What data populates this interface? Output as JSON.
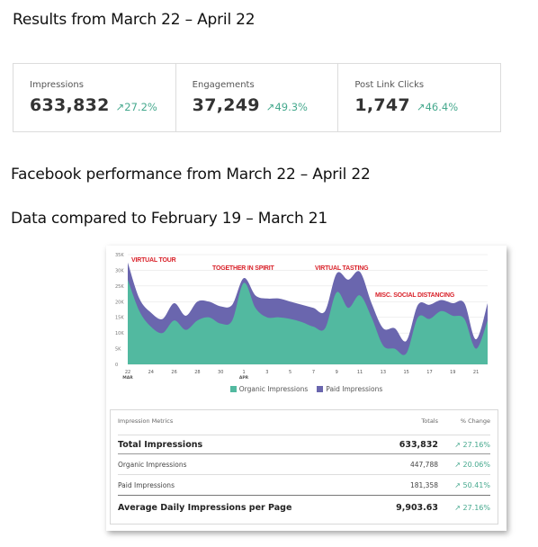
{
  "results_heading": "Results from March 22 – April 22",
  "metrics": [
    {
      "label": "Impressions",
      "value": "633,832",
      "change": "27.2%"
    },
    {
      "label": "Engagements",
      "value": "37,249",
      "change": "49.3%"
    },
    {
      "label": "Post Link Clicks",
      "value": "1,747",
      "change": "46.4%"
    }
  ],
  "facebook_heading": "Facebook performance from March 22 – April 22",
  "compare_heading": "Data compared to February 19 – March 21",
  "colors": {
    "organic": "#52b9a0",
    "paid": "#6a66ae",
    "annotation": "#d9222a",
    "positive": "#46a98e"
  },
  "chart_data": {
    "type": "area",
    "stacked": true,
    "y_ticks": [
      "0",
      "5K",
      "10K",
      "15K",
      "20K",
      "25K",
      "30K",
      "35K"
    ],
    "ylim": [
      0,
      35000
    ],
    "x_ticks": [
      {
        "label": "22",
        "sub": "MAR"
      },
      {
        "label": "24",
        "sub": ""
      },
      {
        "label": "26",
        "sub": ""
      },
      {
        "label": "28",
        "sub": ""
      },
      {
        "label": "30",
        "sub": ""
      },
      {
        "label": "1",
        "sub": "APR"
      },
      {
        "label": "3",
        "sub": ""
      },
      {
        "label": "5",
        "sub": ""
      },
      {
        "label": "7",
        "sub": ""
      },
      {
        "label": "9",
        "sub": ""
      },
      {
        "label": "11",
        "sub": ""
      },
      {
        "label": "13",
        "sub": ""
      },
      {
        "label": "15",
        "sub": ""
      },
      {
        "label": "17",
        "sub": ""
      },
      {
        "label": "19",
        "sub": ""
      },
      {
        "label": "21",
        "sub": ""
      }
    ],
    "x": [
      "Mar 22",
      "Mar 23",
      "Mar 24",
      "Mar 25",
      "Mar 26",
      "Mar 27",
      "Mar 28",
      "Mar 29",
      "Mar 30",
      "Mar 31",
      "Apr 1",
      "Apr 2",
      "Apr 3",
      "Apr 4",
      "Apr 5",
      "Apr 6",
      "Apr 7",
      "Apr 8",
      "Apr 9",
      "Apr 10",
      "Apr 11",
      "Apr 12",
      "Apr 13",
      "Apr 14",
      "Apr 15",
      "Apr 16",
      "Apr 17",
      "Apr 18",
      "Apr 19",
      "Apr 20",
      "Apr 21",
      "Apr 22"
    ],
    "series": [
      {
        "name": "Organic Impressions",
        "values": [
          27000,
          17000,
          12000,
          10000,
          14000,
          11000,
          14000,
          15000,
          13000,
          14000,
          26000,
          18000,
          15000,
          15000,
          14500,
          13500,
          12000,
          11500,
          23000,
          18000,
          22000,
          15000,
          6000,
          5000,
          3500,
          15000,
          14500,
          17000,
          15500,
          14500,
          5000,
          14000
        ]
      },
      {
        "name": "Paid Impressions",
        "values": [
          5500,
          4000,
          4500,
          4500,
          5500,
          4500,
          6000,
          5000,
          5500,
          5000,
          1500,
          4000,
          6000,
          6000,
          5500,
          5500,
          6000,
          5500,
          6000,
          9000,
          7500,
          4500,
          5500,
          6500,
          4000,
          4000,
          4500,
          3500,
          4000,
          5000,
          3000,
          5500
        ]
      }
    ],
    "annotations": [
      "VIRTUAL TOUR",
      "TOGETHER IN SPIRIT",
      "VIRTUAL TASTING",
      "MISC. SOCIAL DISTANCING"
    ],
    "legend": [
      "Organic Impressions",
      "Paid Impressions"
    ]
  },
  "table": {
    "headers": [
      "Impression Metrics",
      "Totals",
      "% Change"
    ],
    "rows": [
      {
        "name": "Total Impressions",
        "total": "633,832",
        "change": "27.16%"
      },
      {
        "name": "Organic Impressions",
        "total": "447,788",
        "change": "20.06%"
      },
      {
        "name": "Paid Impressions",
        "total": "181,358",
        "change": "50.41%"
      },
      {
        "name": "Average Daily Impressions per Page",
        "total": "9,903.63",
        "change": "27.16%"
      }
    ]
  }
}
